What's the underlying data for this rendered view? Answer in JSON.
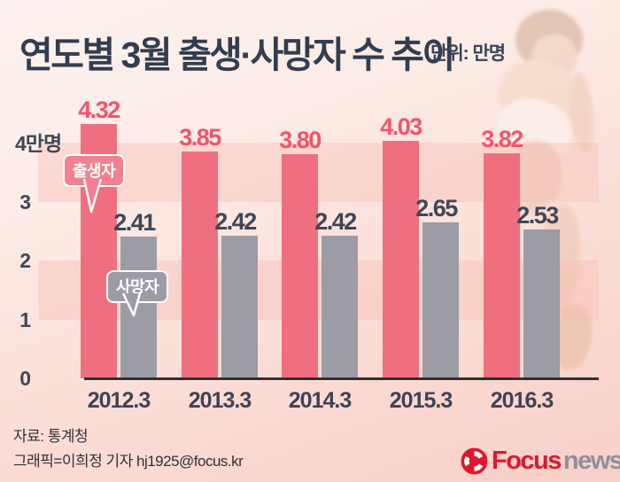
{
  "title": "연도별 3월 출생·사망자 수  추이",
  "unit_label": "단위: 만명",
  "legend": {
    "births": "출생자",
    "deaths": "사망자"
  },
  "footer": {
    "source": "자료: 통계청",
    "credit": "그래픽=이희정 기자 hj1925@focus.kr"
  },
  "logo": {
    "focus": "Focus",
    "news": "news"
  },
  "colors": {
    "birth_bar": "#f06f7e",
    "birth_label": "#f4536a",
    "death_bar": "#9c9ca6",
    "death_label": "#3e4757",
    "title_text": "#333d50",
    "band": "rgba(246,186,177,0.38)",
    "logo_red": "#e0172d",
    "logo_gray": "#8c909a"
  },
  "chart_data": {
    "type": "bar",
    "title": "연도별 3월 출생·사망자 수 추이",
    "unit": "만명",
    "categories": [
      "2012.3",
      "2013.3",
      "2014.3",
      "2015.3",
      "2016.3"
    ],
    "series": [
      {
        "name": "출생자",
        "values": [
          4.32,
          3.85,
          3.8,
          4.03,
          3.82
        ],
        "labels": [
          "4.32",
          "3.85",
          "3.80",
          "4.03",
          "3.82"
        ]
      },
      {
        "name": "사망자",
        "values": [
          2.41,
          2.42,
          2.42,
          2.65,
          2.53
        ],
        "labels": [
          "2.41",
          "2.42",
          "2.42",
          "2.65",
          "2.53"
        ]
      }
    ],
    "y_axis_ticks": [
      {
        "value": 4,
        "label": "4만명"
      },
      {
        "value": 3,
        "label": "3"
      },
      {
        "value": 2,
        "label": "2"
      },
      {
        "value": 1,
        "label": "1"
      },
      {
        "value": 0,
        "label": "0"
      }
    ],
    "ylim": [
      0,
      4.5
    ],
    "grid_bands_between": [
      [
        3,
        4
      ],
      [
        1,
        2
      ]
    ],
    "legend_position": "on-first-bars",
    "xlabel": "",
    "ylabel": "만명"
  }
}
